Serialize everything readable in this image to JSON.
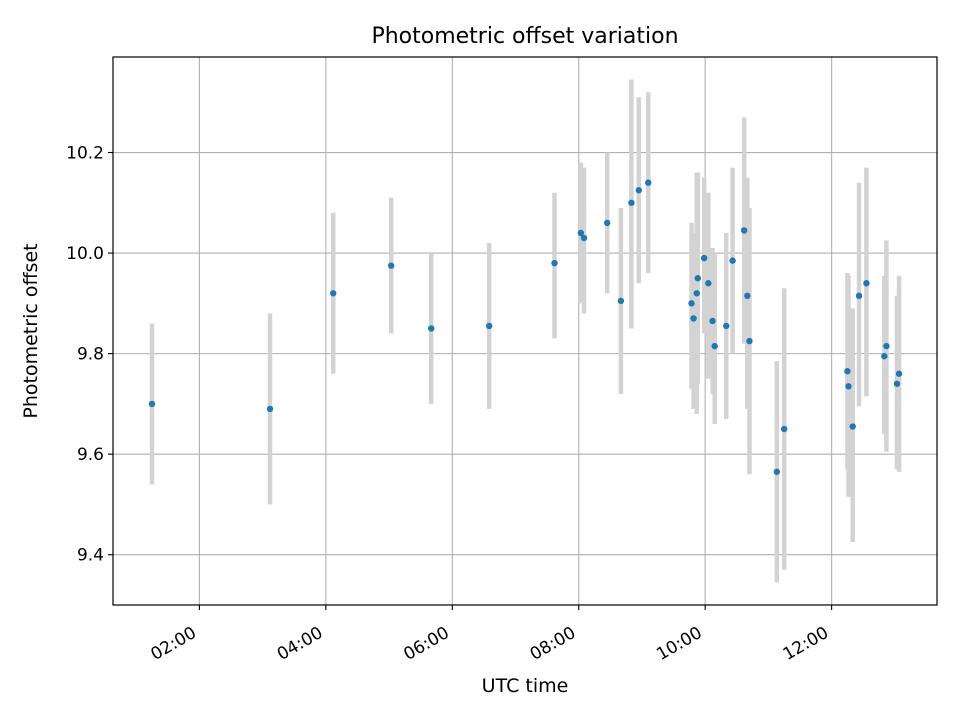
{
  "chart_data": {
    "type": "scatter",
    "title": "Photometric offset variation",
    "xlabel": "UTC time",
    "ylabel": "Photometric offset",
    "x_tick_labels": [
      "02:00",
      "04:00",
      "06:00",
      "08:00",
      "10:00",
      "12:00"
    ],
    "y_tick_labels": [
      "9.4",
      "9.6",
      "9.8",
      "10.0",
      "10.2"
    ],
    "xlim": [
      "00:38",
      "13:40"
    ],
    "ylim": [
      9.3,
      10.39
    ],
    "grid": true,
    "colors": {
      "marker": "#1f77b4",
      "errorbar": "#d3d3d3",
      "grid": "#b0b0b0"
    },
    "series": [
      {
        "points": [
          {
            "x": "01:15",
            "y": 9.7,
            "lo": 9.54,
            "hi": 9.86
          },
          {
            "x": "03:07",
            "y": 9.69,
            "lo": 9.5,
            "hi": 9.88
          },
          {
            "x": "04:07",
            "y": 9.92,
            "lo": 9.76,
            "hi": 10.08
          },
          {
            "x": "05:02",
            "y": 9.975,
            "lo": 9.84,
            "hi": 10.11
          },
          {
            "x": "05:40",
            "y": 9.85,
            "lo": 9.7,
            "hi": 10.0
          },
          {
            "x": "06:35",
            "y": 9.855,
            "lo": 9.69,
            "hi": 10.02
          },
          {
            "x": "07:37",
            "y": 9.98,
            "lo": 9.83,
            "hi": 10.12
          },
          {
            "x": "08:02",
            "y": 10.04,
            "lo": 9.9,
            "hi": 10.18
          },
          {
            "x": "08:05",
            "y": 10.03,
            "lo": 9.88,
            "hi": 10.17
          },
          {
            "x": "08:27",
            "y": 10.06,
            "lo": 9.92,
            "hi": 10.2
          },
          {
            "x": "08:40",
            "y": 9.905,
            "lo": 9.72,
            "hi": 10.09
          },
          {
            "x": "08:50",
            "y": 10.1,
            "lo": 9.85,
            "hi": 10.345
          },
          {
            "x": "08:57",
            "y": 10.125,
            "lo": 9.94,
            "hi": 10.31
          },
          {
            "x": "09:06",
            "y": 10.14,
            "lo": 9.96,
            "hi": 10.32
          },
          {
            "x": "09:47",
            "y": 9.9,
            "lo": 9.73,
            "hi": 10.06
          },
          {
            "x": "09:49",
            "y": 9.87,
            "lo": 9.69,
            "hi": 10.04
          },
          {
            "x": "09:52",
            "y": 9.92,
            "lo": 9.68,
            "hi": 10.16
          },
          {
            "x": "09:53",
            "y": 9.95,
            "lo": 9.74,
            "hi": 10.16
          },
          {
            "x": "09:59",
            "y": 9.99,
            "lo": 9.84,
            "hi": 10.15
          },
          {
            "x": "10:03",
            "y": 9.94,
            "lo": 9.75,
            "hi": 10.12
          },
          {
            "x": "10:07",
            "y": 9.865,
            "lo": 9.72,
            "hi": 10.01
          },
          {
            "x": "10:09",
            "y": 9.815,
            "lo": 9.66,
            "hi": 10.0
          },
          {
            "x": "10:20",
            "y": 9.855,
            "lo": 9.67,
            "hi": 10.04
          },
          {
            "x": "10:26",
            "y": 9.985,
            "lo": 9.8,
            "hi": 10.17
          },
          {
            "x": "10:37",
            "y": 10.045,
            "lo": 9.82,
            "hi": 10.27
          },
          {
            "x": "10:40",
            "y": 9.915,
            "lo": 9.69,
            "hi": 10.15
          },
          {
            "x": "10:42",
            "y": 9.825,
            "lo": 9.56,
            "hi": 10.09
          },
          {
            "x": "11:08",
            "y": 9.565,
            "lo": 9.345,
            "hi": 9.785
          },
          {
            "x": "11:15",
            "y": 9.65,
            "lo": 9.37,
            "hi": 9.93
          },
          {
            "x": "12:15",
            "y": 9.765,
            "lo": 9.57,
            "hi": 9.96
          },
          {
            "x": "12:16",
            "y": 9.735,
            "lo": 9.515,
            "hi": 9.955
          },
          {
            "x": "12:20",
            "y": 9.655,
            "lo": 9.425,
            "hi": 9.89
          },
          {
            "x": "12:26",
            "y": 9.915,
            "lo": 9.695,
            "hi": 10.14
          },
          {
            "x": "12:33",
            "y": 9.94,
            "lo": 9.715,
            "hi": 10.17
          },
          {
            "x": "12:50",
            "y": 9.795,
            "lo": 9.64,
            "hi": 9.955
          },
          {
            "x": "12:52",
            "y": 9.815,
            "lo": 9.605,
            "hi": 10.025
          },
          {
            "x": "13:02",
            "y": 9.74,
            "lo": 9.57,
            "hi": 9.915
          },
          {
            "x": "13:04",
            "y": 9.76,
            "lo": 9.565,
            "hi": 9.955
          }
        ]
      }
    ]
  }
}
